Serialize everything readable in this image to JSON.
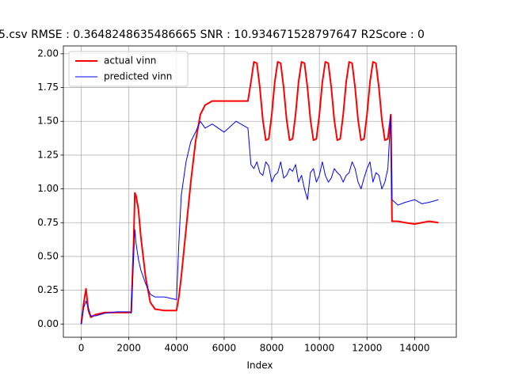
{
  "chart_data": {
    "type": "line",
    "title": "5.csv RMSE : 0.3648248635486665  SNR : 10.934671528797647 R2Score : 0",
    "x_label": "Index",
    "x": [
      0,
      100,
      200,
      300,
      400,
      600,
      1000,
      1500,
      2000,
      2100,
      2200,
      2250,
      2300,
      2400,
      2500,
      2700,
      2900,
      3100,
      3500,
      4000,
      4100,
      4200,
      4400,
      4600,
      4800,
      5000,
      5200,
      5500,
      6000,
      6500,
      7000,
      7125,
      7250,
      7375,
      7500,
      7625,
      7750,
      7875,
      8000,
      8125,
      8250,
      8375,
      8500,
      8625,
      8750,
      8875,
      9000,
      9125,
      9250,
      9375,
      9500,
      9625,
      9750,
      9875,
      10000,
      10125,
      10250,
      10375,
      10500,
      10625,
      10750,
      10875,
      11000,
      11125,
      11250,
      11375,
      11500,
      11625,
      11750,
      11875,
      12000,
      12125,
      12250,
      12375,
      12500,
      12625,
      12750,
      12875,
      13000,
      13050,
      13300,
      13600,
      14000,
      14300,
      14600,
      15000
    ],
    "series": [
      {
        "name": "actual vinn",
        "color": "#ff0000",
        "line_width": 2,
        "values": [
          0,
          0.15,
          0.26,
          0.1,
          0.05,
          0.07,
          0.085,
          0.085,
          0.085,
          0.09,
          0.6,
          0.97,
          0.95,
          0.85,
          0.65,
          0.35,
          0.16,
          0.11,
          0.1,
          0.1,
          0.2,
          0.35,
          0.7,
          1.05,
          1.35,
          1.55,
          1.62,
          1.65,
          1.65,
          1.65,
          1.65,
          1.79,
          1.94,
          1.93,
          1.75,
          1.51,
          1.36,
          1.37,
          1.55,
          1.79,
          1.94,
          1.93,
          1.75,
          1.51,
          1.36,
          1.37,
          1.55,
          1.79,
          1.94,
          1.93,
          1.75,
          1.51,
          1.36,
          1.37,
          1.55,
          1.79,
          1.94,
          1.93,
          1.75,
          1.51,
          1.36,
          1.37,
          1.55,
          1.79,
          1.94,
          1.93,
          1.75,
          1.51,
          1.36,
          1.37,
          1.55,
          1.79,
          1.94,
          1.93,
          1.75,
          1.51,
          1.36,
          1.37,
          1.55,
          0.76,
          0.76,
          0.75,
          0.74,
          0.75,
          0.76,
          0.75
        ]
      },
      {
        "name": "predicted vinn",
        "color": "#0000ff",
        "line_width": 1,
        "values": [
          0,
          0.12,
          0.17,
          0.12,
          0.06,
          0.06,
          0.08,
          0.09,
          0.09,
          0.08,
          0.5,
          0.7,
          0.6,
          0.48,
          0.4,
          0.3,
          0.22,
          0.2,
          0.2,
          0.18,
          0.6,
          0.95,
          1.2,
          1.35,
          1.42,
          1.5,
          1.45,
          1.48,
          1.42,
          1.5,
          1.45,
          1.18,
          1.15,
          1.2,
          1.12,
          1.1,
          1.2,
          1.17,
          1.05,
          1.1,
          1.12,
          1.2,
          1.08,
          1.1,
          1.15,
          1.13,
          1.18,
          1.05,
          1.1,
          1.0,
          0.92,
          1.12,
          1.15,
          1.05,
          1.1,
          1.2,
          1.1,
          1.05,
          1.08,
          1.15,
          1.12,
          1.1,
          1.05,
          1.1,
          1.12,
          1.2,
          1.15,
          1.05,
          1.0,
          1.08,
          1.15,
          1.2,
          1.05,
          1.12,
          1.1,
          1.0,
          1.05,
          1.15,
          1.55,
          0.92,
          0.88,
          0.9,
          0.92,
          0.89,
          0.9,
          0.92
        ]
      }
    ],
    "xlim": [
      -750,
      15750
    ],
    "xticks": [
      0,
      2000,
      4000,
      6000,
      8000,
      10000,
      12000,
      14000
    ],
    "ylim": [
      -0.098,
      2.058
    ],
    "yticks": [
      {
        "value": 0,
        "label": "0.00"
      },
      {
        "value": 0.25,
        "label": "0.25"
      },
      {
        "value": 0.5,
        "label": "0.50"
      },
      {
        "value": 0.75,
        "label": "0.75"
      },
      {
        "value": 1,
        "label": "1.00"
      },
      {
        "value": 1.25,
        "label": "1.25"
      },
      {
        "value": 1.5,
        "label": "1.50"
      },
      {
        "value": 1.75,
        "label": "1.75"
      },
      {
        "value": 2,
        "label": "2.00"
      }
    ],
    "grid": true,
    "legend": "upper left"
  }
}
